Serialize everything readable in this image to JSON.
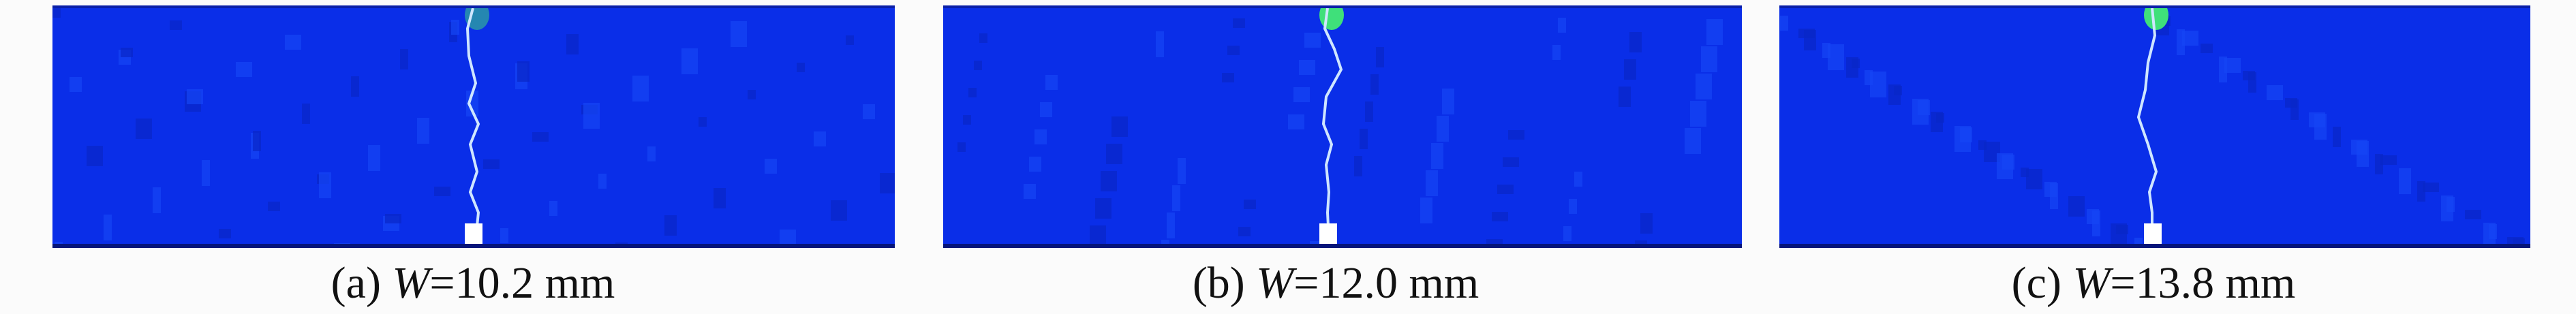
{
  "panels": [
    {
      "label": "(a)",
      "variable": "W",
      "value_text": "=10.2 mm"
    },
    {
      "label": "(b)",
      "variable": "W",
      "value_text": "=12.0 mm"
    },
    {
      "label": "(c)",
      "variable": "W",
      "value_text": "=13.8 mm"
    }
  ],
  "colors": {
    "background_field": "#0a2ee8",
    "crack": "#cfe6ff",
    "high_damage": "#3fe07a",
    "notch": "#ffffff"
  }
}
